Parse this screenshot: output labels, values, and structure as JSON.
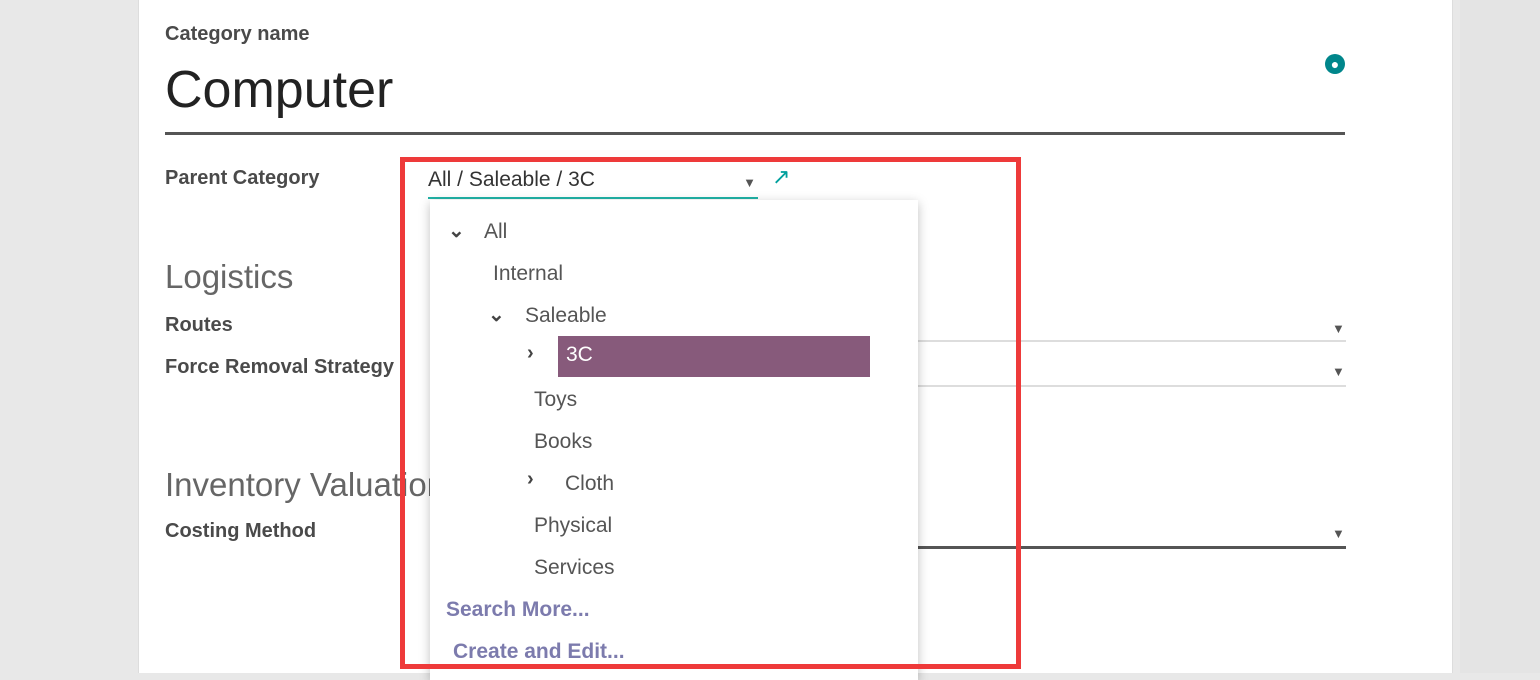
{
  "form": {
    "category_name_label": "Category name",
    "category_name": "Computer",
    "parent_category_label": "Parent Category",
    "parent_category_value": "All / Saleable / 3C",
    "logistics_heading": "Logistics",
    "routes_label": "Routes",
    "force_removal_label": "Force Removal Strategy",
    "inventory_valuation_heading": "Inventory Valuation",
    "costing_method_label": "Costing Method"
  },
  "dropdown": {
    "items": [
      {
        "label": "All",
        "expanded": true
      },
      {
        "label": "Internal"
      },
      {
        "label": "Saleable",
        "expanded": true
      },
      {
        "label": "3C",
        "collapsed": true,
        "selected": true
      },
      {
        "label": "Toys"
      },
      {
        "label": "Books"
      },
      {
        "label": "Cloth",
        "collapsed": true
      },
      {
        "label": "Physical"
      },
      {
        "label": "Services"
      }
    ],
    "search_more": "Search More...",
    "create_edit": "Create and Edit..."
  },
  "colors": {
    "accent": "#875a7b",
    "teal": "#00a09d",
    "highlight_box": "#ee3a3a",
    "link": "#7c7bad"
  }
}
